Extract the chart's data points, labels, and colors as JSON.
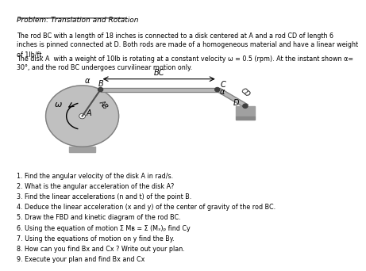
{
  "title": "Problem: Translation and Rotation",
  "paragraph1": "The rod BC with a length of 18 inches is connected to a disk centered at A and a rod CD of length 6\ninches is pinned connected at D. Both rods are made of a homogeneous material and have a linear weight\nof 1lb/ft.",
  "paragraph2": "The disk A  with a weight of 10lb is rotating at a constant velocity ω = 0.5 (rpm). At the instant shown α=\n30°, and the rod BC undergoes curvilinear motion only.",
  "questions": [
    "1. Find the angular velocity of the disk A in rad/s.",
    "2. What is the angular acceleration of the disk A?",
    "3. Find the linear accelerations (n and t) of the point B.",
    "4. Deduce the linear acceleration (x and y) of the center of gravity of the rod BC.",
    "5. Draw the FBD and kinetic diagram of the rod BC.",
    "6. Using the equation of motion Σ Mʙ = Σ (Mₓ)ₚ find Cy",
    "7. Using the equations of motion on y find the By.",
    "8. How can you find Bx and Cx ? Write out your plan.",
    "9. Execute your plan and find Bx and Cx"
  ],
  "background_color": "#ffffff",
  "text_color": "#000000",
  "disk_color": "#c0c0c0",
  "rod_color": "#b8b8b8",
  "support_color": "#a0a0a0"
}
